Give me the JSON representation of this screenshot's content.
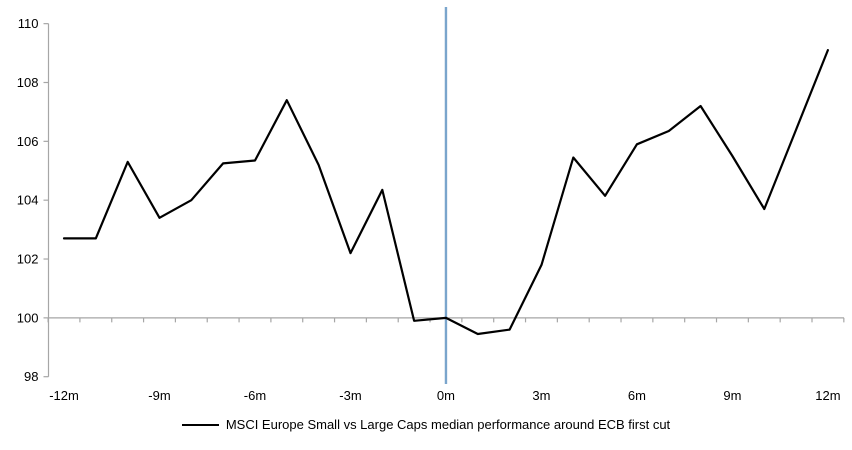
{
  "chart_data": {
    "type": "line",
    "title": "",
    "xlabel": "",
    "ylabel": "",
    "xlim": [
      -12.5,
      12.5
    ],
    "ylim": [
      98,
      110
    ],
    "grid": false,
    "baseline_value": 100,
    "legend_position": "bottom-center",
    "y_ticks": [
      98,
      100,
      102,
      104,
      106,
      108,
      110
    ],
    "x_ticks": [
      {
        "pos": -12,
        "label": "-12m"
      },
      {
        "pos": -9,
        "label": "-9m"
      },
      {
        "pos": -6,
        "label": "-6m"
      },
      {
        "pos": -3,
        "label": "-3m"
      },
      {
        "pos": 0,
        "label": "0m"
      },
      {
        "pos": 3,
        "label": "3m"
      },
      {
        "pos": 6,
        "label": "6m"
      },
      {
        "pos": 9,
        "label": "9m"
      },
      {
        "pos": 12,
        "label": "12m"
      }
    ],
    "series": [
      {
        "name": "MSCI Europe Small vs Large Caps median performance around ECB first cut",
        "color": "#000000",
        "x": [
          -12,
          -11,
          -10,
          -9,
          -8,
          -7,
          -6,
          -5,
          -4,
          -3,
          -2,
          -1,
          0,
          1,
          2,
          3,
          4,
          5,
          6,
          7,
          8,
          9,
          10,
          11,
          12
        ],
        "values": [
          102.7,
          102.7,
          105.3,
          103.4,
          104.0,
          105.25,
          105.35,
          107.4,
          105.2,
          102.2,
          104.35,
          99.9,
          100.0,
          99.45,
          99.6,
          101.8,
          105.45,
          104.15,
          105.9,
          106.35,
          107.2,
          105.5,
          103.7,
          106.4,
          109.1
        ]
      }
    ],
    "event_line": {
      "x": 0,
      "color": "#7AA5CC"
    }
  },
  "colors": {
    "series": "#000000",
    "event_line": "#7AA5CC",
    "axis": "#A6A6A6",
    "text": "#000000",
    "background": "#FFFFFF"
  },
  "legend": {
    "label": "MSCI Europe Small vs Large Caps median performance around ECB first cut"
  }
}
